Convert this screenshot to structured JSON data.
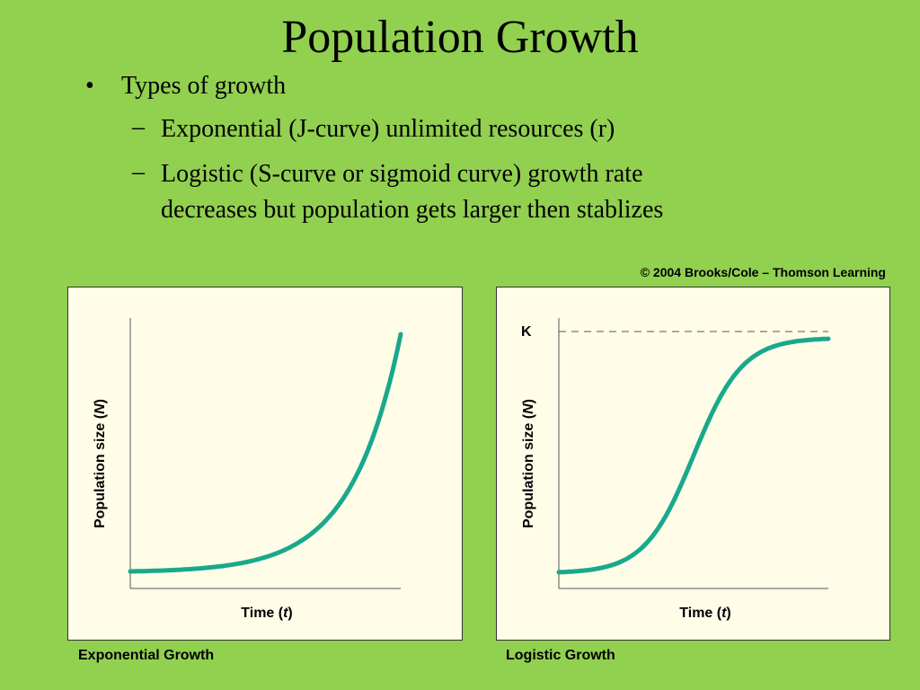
{
  "slide": {
    "title": "Population Growth"
  },
  "bullets": {
    "marker": "•",
    "dash": "–",
    "level1": "Types of growth",
    "exponential": "Exponential (J-curve) unlimited resources (r)",
    "logistic_line1": "Logistic (S-curve or sigmoid curve) growth rate",
    "logistic_line2": "decreases but population gets larger then stablizes"
  },
  "copyright": "© 2004 Brooks/Cole – Thomson Learning",
  "graphs": {
    "exponential": {
      "ylabel_text": "Population size (",
      "ylabel_var": "N",
      "ylabel_close": ")",
      "xlabel_text": "Time (",
      "xlabel_var": "t",
      "xlabel_close": ")",
      "caption": "Exponential Growth",
      "curve_color": "#1aa88c"
    },
    "logistic": {
      "ylabel_text": "Population size (",
      "ylabel_var": "N",
      "ylabel_close": ")",
      "xlabel_text": "Time (",
      "xlabel_var": "t",
      "xlabel_close": ")",
      "carrying_capacity_label": "K",
      "caption": "Logistic Growth",
      "curve_color": "#1aa88c"
    }
  },
  "colors": {
    "background": "#92d050",
    "panel": "#fffde8"
  }
}
